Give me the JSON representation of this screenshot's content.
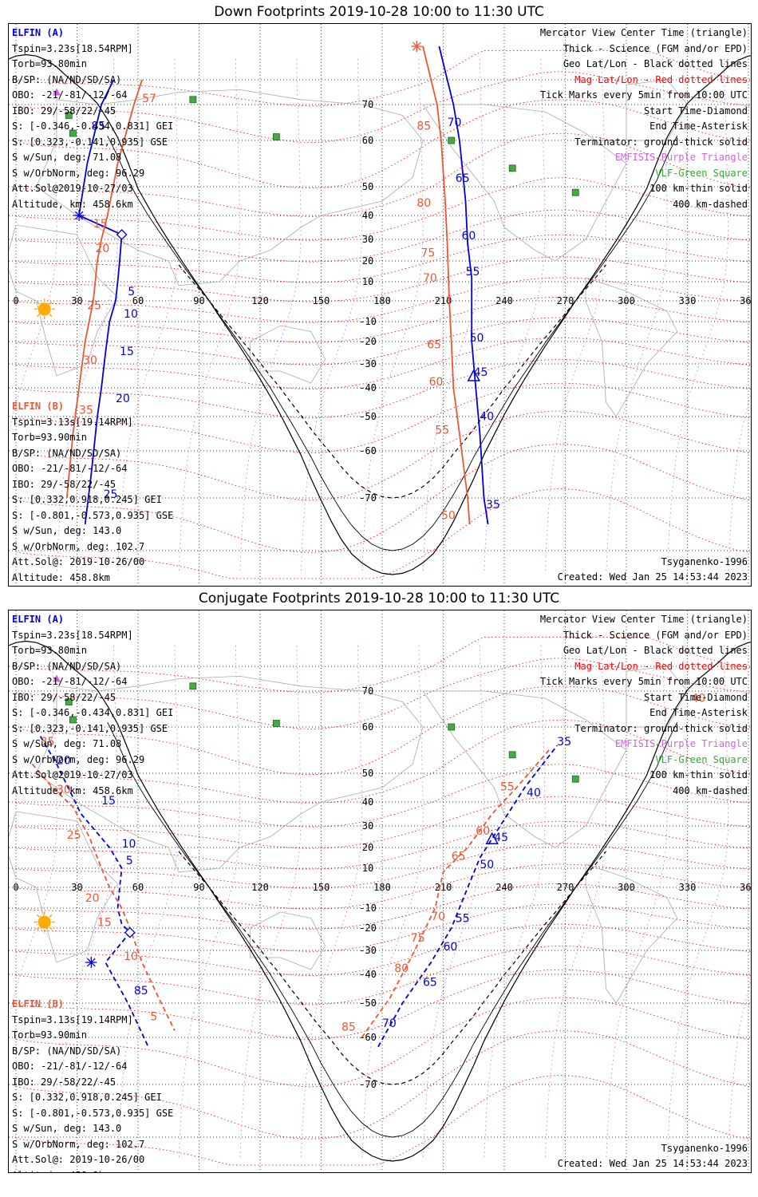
{
  "titles": {
    "down": "Down Footprints 2019-10-28 10:00 to 11:30 UTC",
    "conj": "Conjugate Footprints 2019-10-28 10:00 to 11:30 UTC"
  },
  "elfin_a": {
    "name": "ELFIN (A)",
    "lines": [
      "Tspin=3.23s[18.54RPM]",
      "Torb=93.80min",
      "B/SP: (NA/ND/SD/SA)",
      "OBO: -21/-81/-12/-64",
      "IBO: 29/-58/22/-45",
      "S: [-0.346,-0.434,0.831] GEI",
      "S: [0.323,-0.141,0.935] GSE",
      "S w/Sun, deg: 71.08",
      "S w/OrbNorm, deg: 96.29",
      "Att.Sol@2019-10-27/03",
      "Altitude, km: 458.6km"
    ]
  },
  "elfin_b": {
    "name": "ELFIN (B)",
    "lines": [
      "Tspin=3.13s[19.14RPM]",
      "Torb=93.90min",
      "B/SP: (NA/ND/SD/SA)",
      "OBO: -21/-81/-12/-64",
      "IBO: 29/-58/22/-45",
      "S: [0.332,0.918,0.245] GEI",
      "S: [-0.801,-0.573,0.935] GSE",
      "S w/Sun, deg: 143.0",
      "S w/OrbNorm, deg: 102.7",
      "Att.Sol@: 2019-10-26/00",
      "Altitude: 458.8km"
    ]
  },
  "legend": {
    "mercator": "Mercator View Center Time (triangle)",
    "thick": "Thick - Science (FGM and/or EPD)",
    "geo": "Geo Lat/Lon - Black dotted lines",
    "mag": "Mag Lat/Lon - Red dotted lines",
    "ticks": "Tick Marks every 5min from 10:00 UTC",
    "start": "Start Time-Diamond",
    "end": "End Time-Asterisk",
    "terminator": "Terminator: ground-thick solid",
    "emfisis": "EMFISIS-Purple Triangle",
    "vlf": "VLF-Green Square",
    "km100": "100 km-thin solid",
    "km400": "400 km-dashed"
  },
  "footer": {
    "model": "Tsyganenko-1996",
    "created": "Created: Wed Jan 25 14:53:44 2023"
  },
  "map": {
    "lon_labels": [
      "0",
      "30",
      "60",
      "90",
      "120",
      "150",
      "180",
      "210",
      "240",
      "270",
      "300",
      "330",
      "360"
    ],
    "lat_labels": [
      {
        "v": "70",
        "lat": 70
      },
      {
        "v": "60",
        "lat": 60
      },
      {
        "v": "50",
        "lat": 50
      },
      {
        "v": "40",
        "lat": 40
      },
      {
        "v": "30",
        "lat": 30
      },
      {
        "v": "20",
        "lat": 20
      },
      {
        "v": "10",
        "lat": 10
      },
      {
        "v": "-10",
        "lat": -10
      },
      {
        "v": "-20",
        "lat": -20
      },
      {
        "v": "-30",
        "lat": -30
      },
      {
        "v": "-40",
        "lat": -40
      },
      {
        "v": "-50",
        "lat": -50
      },
      {
        "v": "-60",
        "lat": -60
      },
      {
        "v": "-70",
        "lat": -70
      }
    ],
    "colors": {
      "elfin_a": "#0000dd",
      "elfin_b": "#ee5533",
      "mag_grid": "#ff0000",
      "geo_grid": "#000000",
      "vlf": "#44aa44",
      "emfisis": "#cc66dd",
      "sun": "#ffaa00",
      "coast": "#aaaaaa"
    },
    "vlf_stations": [
      {
        "lon": 87,
        "lat": 72
      },
      {
        "lon": 26,
        "lat": 67
      },
      {
        "lon": 28,
        "lat": 62
      },
      {
        "lon": 128,
        "lat": 61
      },
      {
        "lon": 214,
        "lat": 60
      },
      {
        "lon": 244,
        "lat": 54
      },
      {
        "lon": 275,
        "lat": 48
      }
    ]
  },
  "down": {
    "a_track": [
      [
        48,
        80
      ],
      [
        42,
        70
      ],
      [
        35,
        55
      ],
      [
        31,
        40
      ],
      [
        52,
        32
      ],
      [
        51,
        20
      ],
      [
        50,
        10
      ],
      [
        49,
        0
      ],
      [
        46,
        -10
      ],
      [
        44,
        -25
      ],
      [
        42,
        -40
      ],
      [
        40,
        -50
      ],
      [
        37,
        -65
      ],
      [
        34,
        -75
      ]
    ],
    "b_track": [
      [
        62,
        80
      ],
      [
        58,
        70
      ],
      [
        50,
        55
      ],
      [
        45,
        40
      ],
      [
        42,
        30
      ],
      [
        40,
        20
      ],
      [
        38,
        0
      ],
      [
        34,
        -20
      ],
      [
        31,
        -40
      ],
      [
        28,
        -55
      ],
      [
        25,
        -70
      ]
    ],
    "a2_track": [
      [
        208,
        88
      ],
      [
        212,
        80
      ],
      [
        215,
        70
      ],
      [
        218,
        60
      ],
      [
        221,
        45
      ],
      [
        222,
        28
      ],
      [
        224,
        12
      ],
      [
        224,
        -20
      ],
      [
        226,
        -40
      ],
      [
        228,
        -55
      ],
      [
        230,
        -70
      ],
      [
        232,
        -75
      ]
    ],
    "b2_track": [
      [
        200,
        88
      ],
      [
        204,
        80
      ],
      [
        207,
        70
      ],
      [
        209,
        60
      ],
      [
        211,
        45
      ],
      [
        212,
        28
      ],
      [
        213,
        0
      ],
      [
        214,
        -20
      ],
      [
        215,
        -40
      ],
      [
        218,
        -55
      ],
      [
        222,
        -70
      ],
      [
        223,
        -75
      ]
    ],
    "a_ticks": [
      {
        "t": "85",
        "lon": 37,
        "lat": 63
      },
      {
        "t": "5",
        "lon": 55,
        "lat": 3
      },
      {
        "t": "10",
        "lon": 53,
        "lat": -8
      },
      {
        "t": "15",
        "lon": 51,
        "lat": -26
      },
      {
        "t": "20",
        "lon": 49,
        "lat": -45
      },
      {
        "t": "25",
        "lon": 43,
        "lat": -70
      },
      {
        "t": "70",
        "lon": 212,
        "lat": 64
      },
      {
        "t": "65",
        "lon": 216,
        "lat": 51
      },
      {
        "t": "60",
        "lon": 219,
        "lat": 30
      },
      {
        "t": "55",
        "lon": 221,
        "lat": 13
      },
      {
        "t": "50",
        "lon": 223,
        "lat": -20
      },
      {
        "t": "45",
        "lon": 225,
        "lat": -35
      },
      {
        "t": "40",
        "lon": 228,
        "lat": -51
      },
      {
        "t": "35",
        "lon": 231,
        "lat": -72
      }
    ],
    "b_ticks": [
      {
        "t": "57",
        "lon": 62,
        "lat": 71
      },
      {
        "t": "15",
        "lon": 38,
        "lat": 35
      },
      {
        "t": "20",
        "lon": 39,
        "lat": 24
      },
      {
        "t": "25",
        "lon": 35,
        "lat": -4
      },
      {
        "t": "30",
        "lon": 33,
        "lat": -30
      },
      {
        "t": "35",
        "lon": 31,
        "lat": -49
      },
      {
        "t": "85",
        "lon": 197,
        "lat": 63
      },
      {
        "t": "80",
        "lon": 197,
        "lat": 43
      },
      {
        "t": "75",
        "lon": 199,
        "lat": 22
      },
      {
        "t": "70",
        "lon": 200,
        "lat": 10
      },
      {
        "t": "65",
        "lon": 202,
        "lat": -23
      },
      {
        "t": "60",
        "lon": 203,
        "lat": -39
      },
      {
        "t": "55",
        "lon": 206,
        "lat": -55
      },
      {
        "t": "50",
        "lon": 209,
        "lat": -74
      }
    ],
    "a_diamond": {
      "lon": 52,
      "lat": 32
    },
    "a_asterisk": {
      "lon": 31,
      "lat": 40
    },
    "b_asterisk": {
      "lon": 197,
      "lat": 88
    },
    "a_triangle": {
      "lon": 225,
      "lat": -35
    },
    "emfisis_tri": {
      "lon": 20,
      "lat": 75
    },
    "sun": {
      "lon": 14,
      "lat": -4
    }
  },
  "conj": {
    "a_track": [
      [
        12,
        58
      ],
      [
        20,
        52
      ],
      [
        32,
        35
      ],
      [
        46,
        20
      ],
      [
        52,
        10
      ],
      [
        51,
        0
      ],
      [
        50,
        -10
      ],
      [
        52,
        -18
      ],
      [
        56,
        -22
      ],
      [
        44,
        -35
      ],
      [
        55,
        -50
      ],
      [
        65,
        -62
      ]
    ],
    "b_track": [
      [
        8,
        52
      ],
      [
        18,
        45
      ],
      [
        28,
        38
      ],
      [
        36,
        25
      ],
      [
        42,
        10
      ],
      [
        46,
        0
      ],
      [
        52,
        -10
      ],
      [
        56,
        -20
      ],
      [
        62,
        -35
      ],
      [
        70,
        -48
      ],
      [
        78,
        -58
      ]
    ],
    "a2_track": [
      [
        178,
        -62
      ],
      [
        190,
        -50
      ],
      [
        204,
        -35
      ],
      [
        214,
        -20
      ],
      [
        220,
        -5
      ],
      [
        228,
        15
      ],
      [
        238,
        30
      ],
      [
        250,
        45
      ],
      [
        266,
        56
      ]
    ],
    "b2_track": [
      [
        170,
        -60
      ],
      [
        184,
        -48
      ],
      [
        196,
        -30
      ],
      [
        206,
        -10
      ],
      [
        210,
        8
      ],
      [
        222,
        20
      ],
      [
        234,
        35
      ],
      [
        246,
        45
      ],
      [
        262,
        55
      ]
    ],
    "a_ticks": [
      {
        "t": "20",
        "lon": 20,
        "lat": 52
      },
      {
        "t": "15",
        "lon": 42,
        "lat": 39
      },
      {
        "t": "10",
        "lon": 52,
        "lat": 20
      },
      {
        "t": "5",
        "lon": 54,
        "lat": 12
      },
      {
        "t": "85",
        "lon": 58,
        "lat": -47
      },
      {
        "t": "70",
        "lon": 180,
        "lat": -57
      },
      {
        "t": "65",
        "lon": 200,
        "lat": -44
      },
      {
        "t": "60",
        "lon": 210,
        "lat": -30
      },
      {
        "t": "55",
        "lon": 216,
        "lat": -17
      },
      {
        "t": "50",
        "lon": 228,
        "lat": 10
      },
      {
        "t": "45",
        "lon": 235,
        "lat": 23
      },
      {
        "t": "40",
        "lon": 251,
        "lat": 42
      },
      {
        "t": "35",
        "lon": 266,
        "lat": 56
      }
    ],
    "b_ticks": [
      {
        "t": "35",
        "lon": 12,
        "lat": 56
      },
      {
        "t": "30",
        "lon": 20,
        "lat": 43
      },
      {
        "t": "25",
        "lon": 25,
        "lat": 24
      },
      {
        "t": "20",
        "lon": 34,
        "lat": -7
      },
      {
        "t": "15",
        "lon": 40,
        "lat": -19
      },
      {
        "t": "10",
        "lon": 53,
        "lat": -34
      },
      {
        "t": "5",
        "lon": 66,
        "lat": -55
      },
      {
        "t": "85",
        "lon": 160,
        "lat": -58
      },
      {
        "t": "80",
        "lon": 186,
        "lat": -39
      },
      {
        "t": "75",
        "lon": 194,
        "lat": -26
      },
      {
        "t": "70",
        "lon": 204,
        "lat": -16
      },
      {
        "t": "65",
        "lon": 214,
        "lat": 14
      },
      {
        "t": "60",
        "lon": 226,
        "lat": 26
      },
      {
        "t": "55",
        "lon": 238,
        "lat": 44
      },
      {
        "t": "40",
        "lon": 332,
        "lat": 67
      }
    ],
    "a_diamond": {
      "lon": 56,
      "lat": -22
    },
    "a_asterisk": {
      "lon": 37,
      "lat": -35
    },
    "a_triangle": {
      "lon": 234,
      "lat": 24
    },
    "emfisis_tri": {
      "lon": 20,
      "lat": 75
    },
    "sun": {
      "lon": 14,
      "lat": -17
    }
  }
}
